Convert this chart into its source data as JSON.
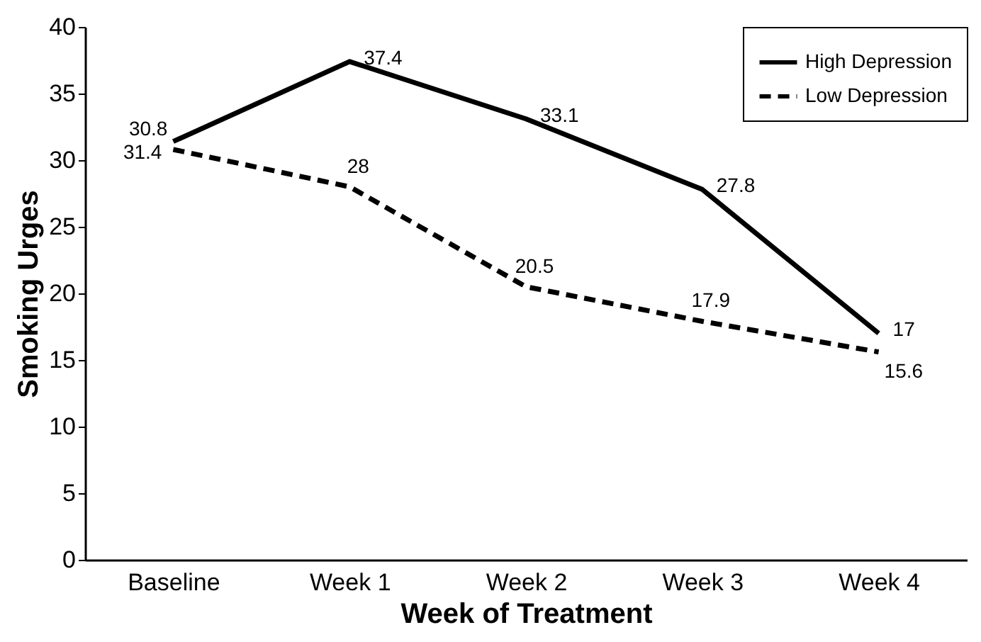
{
  "chart_data": {
    "type": "line",
    "xlabel": "Week of Treatment",
    "ylabel": "Smoking Urges",
    "categories": [
      "Baseline",
      "Week 1",
      "Week 2",
      "Week 3",
      "Week 4"
    ],
    "series": [
      {
        "name": "High Depression",
        "color": "#000000",
        "line_style": "solid",
        "values": [
          31.4,
          37.4,
          33.1,
          27.8,
          17
        ]
      },
      {
        "name": "Low Depression",
        "color": "#000000",
        "line_style": "dashed",
        "values": [
          30.8,
          28,
          20.5,
          17.9,
          15.6
        ]
      }
    ],
    "ylim": [
      0,
      40
    ],
    "yticks": [
      0,
      5,
      10,
      15,
      20,
      25,
      30,
      35,
      40
    ],
    "grid": false,
    "legend": "top right",
    "marker": "none",
    "data_labels": true
  }
}
